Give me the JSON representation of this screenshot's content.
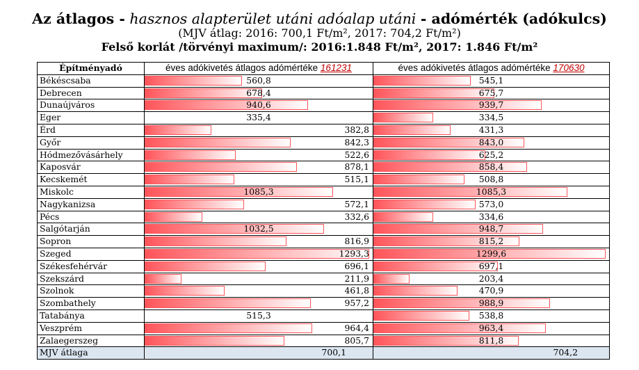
{
  "title": {
    "part1": "Az átlagos -",
    "part2": "hasznos alapterület utáni adóalap utáni",
    "part3": "- adómérték (adókulcs)"
  },
  "subtitle": "(MJV átlag: 2016: 700,1 Ft/m², 2017: 704,2 Ft/m²)",
  "limit_line": "Felső korlát /törvényi maximum/: 2016:1.848 Ft/m², 2017: 1.846 Ft/m²",
  "table": {
    "header": {
      "col1": "Építményadó",
      "col2_text": "éves adókivetés átlagos adómértéke",
      "col3_text": "éves adókivetés átlagos adómértéke"
    },
    "average_row": {
      "name": "MJV átlaga",
      "v2016": "700,1",
      "v2017": "704,2"
    }
  },
  "colors": {
    "bar": "#ff555a",
    "average_row": "#dce6f1",
    "header_reference": "#c00000"
  },
  "chart_data": {
    "type": "bar",
    "categories": [
      "Békéscsaba",
      "Debrecen",
      "Dunaújváros",
      "Eger",
      "Érd",
      "Győr",
      "Hódmezővásárhely",
      "Kaposvár",
      "Kecskemét",
      "Miskolc",
      "Nagykanizsa",
      "Pécs",
      "Salgótarján",
      "Sopron",
      "Szeged",
      "Székesfehérvár",
      "Szekszárd",
      "Szolnok",
      "Szombathely",
      "Tatabánya",
      "Veszprém",
      "Zalaegerszeg"
    ],
    "series": [
      {
        "name": "161231",
        "values": [
          560.8,
          678.4,
          940.6,
          335.4,
          382.8,
          842.3,
          522.6,
          878.1,
          515.1,
          1085.3,
          572.1,
          332.6,
          1032.5,
          816.9,
          1293.3,
          696.1,
          211.9,
          461.8,
          957.2,
          515.3,
          964.4,
          805.7
        ],
        "labels": [
          "560,8",
          "678,4",
          "940,6",
          "335,4",
          "382,8",
          "842,3",
          "522,6",
          "878,1",
          "515,1",
          "1085,3",
          "572,1",
          "332,6",
          "1032,5",
          "816,9",
          "1293,3",
          "696,1",
          "211,9",
          "461,8",
          "957,2",
          "515,3",
          "964,4",
          "805,7"
        ]
      },
      {
        "name": "170630",
        "values": [
          545.1,
          675.7,
          939.7,
          334.5,
          431.3,
          843.0,
          625.2,
          858.4,
          508.8,
          1085.3,
          573.0,
          334.6,
          948.7,
          815.2,
          1299.6,
          697.1,
          203.4,
          470.9,
          988.9,
          538.8,
          963.4,
          811.8
        ],
        "labels": [
          "545,1",
          "675,7",
          "939,7",
          "334,5",
          "431,3",
          "843,0",
          "625,2",
          "858,4",
          "508,8",
          "1085,3",
          "573,0",
          "334,6",
          "948,7",
          "815,2",
          "1299,6",
          "697,1",
          "203,4",
          "470,9",
          "988,9",
          "538,8",
          "963,4",
          "811,8"
        ]
      }
    ]
  }
}
